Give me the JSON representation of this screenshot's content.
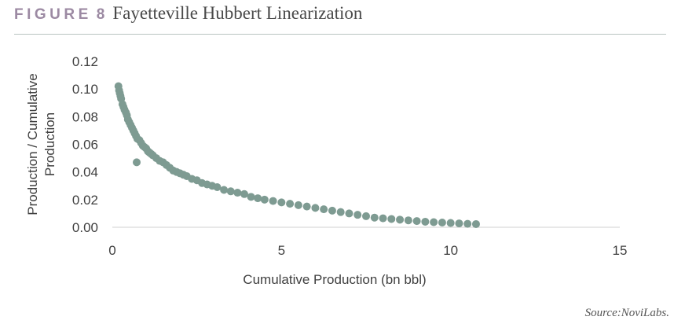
{
  "figure": {
    "label": "FIGURE",
    "number": "8",
    "title": "Fayetteville Hubbert Linearization"
  },
  "source": "Source:NoviLabs.",
  "chart_data": {
    "type": "scatter",
    "title": "Fayetteville Hubbert Linearization",
    "xlabel": "Cumulative Production (bn bbl)",
    "ylabel": "Production / Cumulative Production",
    "xlim": [
      0,
      15
    ],
    "ylim": [
      0,
      0.12
    ],
    "xticks": [
      0,
      5,
      10,
      15
    ],
    "xtick_labels": [
      "0",
      "5",
      "10",
      "15"
    ],
    "yticks": [
      0,
      0.02,
      0.04,
      0.06,
      0.08,
      0.1,
      0.12
    ],
    "ytick_labels": [
      "0.00",
      "0.02",
      "0.04",
      "0.06",
      "0.08",
      "0.10",
      "0.12"
    ],
    "grid": false,
    "legend": "none",
    "marker_color": "#7e9b92",
    "series": [
      {
        "points": [
          [
            0.18,
            0.102
          ],
          [
            0.2,
            0.099
          ],
          [
            0.22,
            0.097
          ],
          [
            0.24,
            0.095
          ],
          [
            0.26,
            0.093
          ],
          [
            0.3,
            0.089
          ],
          [
            0.33,
            0.087
          ],
          [
            0.36,
            0.085
          ],
          [
            0.4,
            0.083
          ],
          [
            0.43,
            0.081
          ],
          [
            0.46,
            0.078
          ],
          [
            0.5,
            0.076
          ],
          [
            0.54,
            0.074
          ],
          [
            0.58,
            0.072
          ],
          [
            0.62,
            0.07
          ],
          [
            0.66,
            0.068
          ],
          [
            0.7,
            0.066
          ],
          [
            0.74,
            0.064
          ],
          [
            0.8,
            0.063
          ],
          [
            0.85,
            0.061
          ],
          [
            0.9,
            0.059
          ],
          [
            0.95,
            0.058
          ],
          [
            1.0,
            0.057
          ],
          [
            1.05,
            0.055
          ],
          [
            1.1,
            0.054
          ],
          [
            1.15,
            0.053
          ],
          [
            1.2,
            0.052
          ],
          [
            1.3,
            0.05
          ],
          [
            1.4,
            0.048
          ],
          [
            1.5,
            0.047
          ],
          [
            1.6,
            0.045
          ],
          [
            1.7,
            0.043
          ],
          [
            1.8,
            0.041
          ],
          [
            1.9,
            0.04
          ],
          [
            2.0,
            0.039
          ],
          [
            2.1,
            0.038
          ],
          [
            2.2,
            0.037
          ],
          [
            2.35,
            0.035
          ],
          [
            2.5,
            0.034
          ],
          [
            2.65,
            0.032
          ],
          [
            2.8,
            0.031
          ],
          [
            2.95,
            0.03
          ],
          [
            3.1,
            0.029
          ],
          [
            3.3,
            0.027
          ],
          [
            3.5,
            0.026
          ],
          [
            3.7,
            0.025
          ],
          [
            3.9,
            0.024
          ],
          [
            4.1,
            0.022
          ],
          [
            4.3,
            0.021
          ],
          [
            4.5,
            0.02
          ],
          [
            4.75,
            0.019
          ],
          [
            5.0,
            0.018
          ],
          [
            5.25,
            0.017
          ],
          [
            5.5,
            0.016
          ],
          [
            5.75,
            0.015
          ],
          [
            6.0,
            0.014
          ],
          [
            6.25,
            0.013
          ],
          [
            6.5,
            0.012
          ],
          [
            6.75,
            0.011
          ],
          [
            7.0,
            0.01
          ],
          [
            7.25,
            0.009
          ],
          [
            7.5,
            0.008
          ],
          [
            7.75,
            0.007
          ],
          [
            8.0,
            0.0065
          ],
          [
            8.25,
            0.006
          ],
          [
            8.5,
            0.0055
          ],
          [
            8.75,
            0.005
          ],
          [
            9.0,
            0.0045
          ],
          [
            9.25,
            0.004
          ],
          [
            9.5,
            0.0037
          ],
          [
            9.75,
            0.0034
          ],
          [
            10.0,
            0.0031
          ],
          [
            10.25,
            0.0028
          ],
          [
            10.5,
            0.0025
          ],
          [
            10.75,
            0.0023
          ],
          [
            0.72,
            0.047
          ]
        ]
      }
    ]
  }
}
